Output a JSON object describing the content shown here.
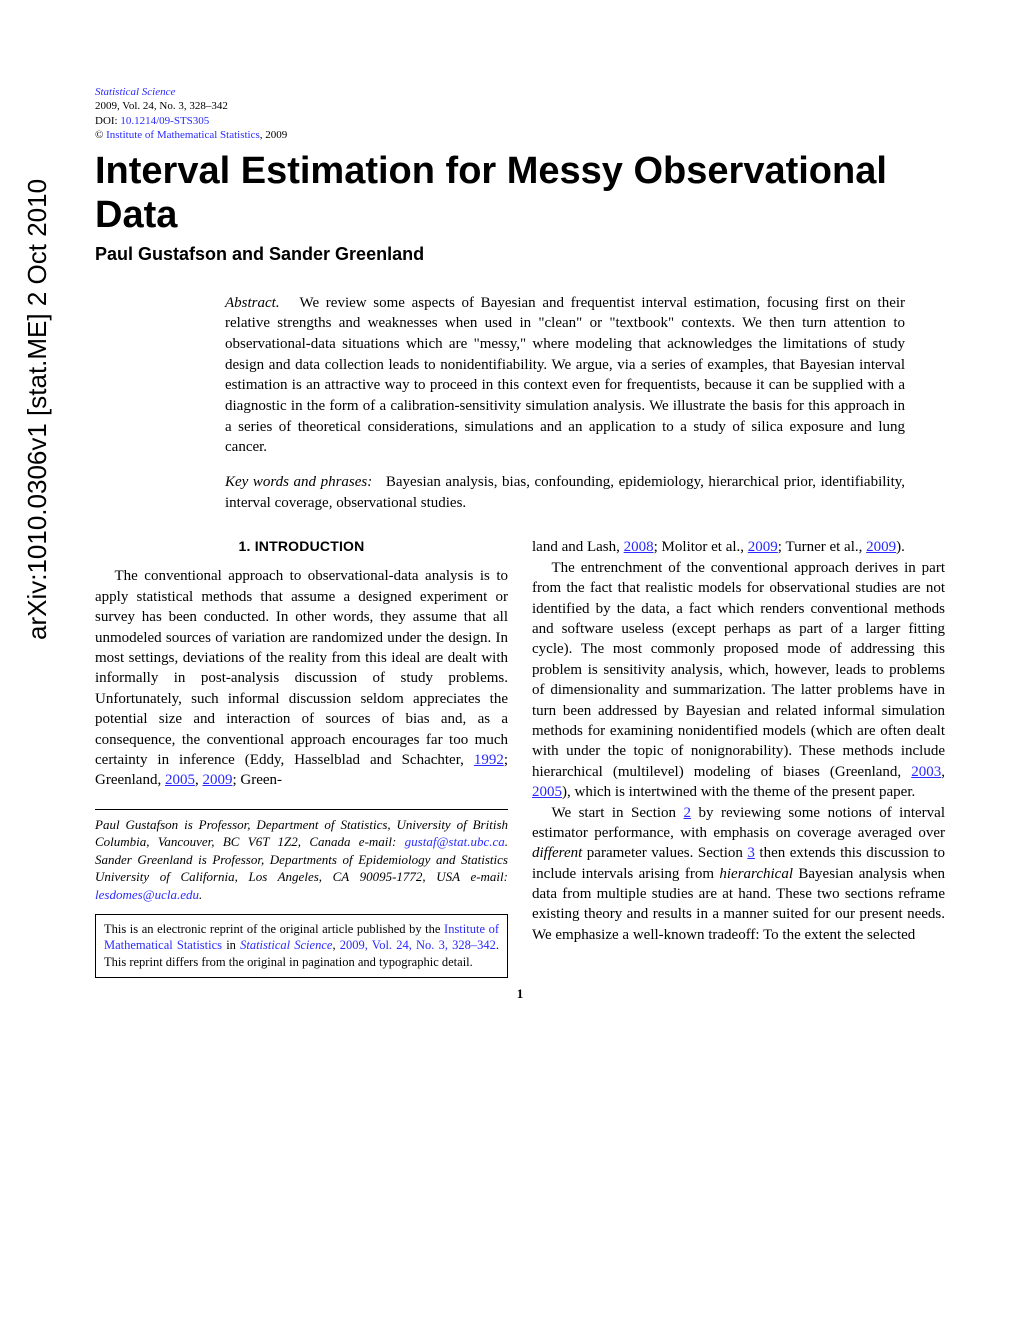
{
  "arxiv": {
    "id": "arXiv:1010.0306v1  [stat.ME]  2 Oct 2010"
  },
  "meta": {
    "journal": "Statistical Science",
    "citation": "2009, Vol. 24, No. 3, 328–342",
    "doi_label": "DOI: ",
    "doi": "10.1214/09-STS305",
    "copyright_prefix": "© ",
    "copyright_link": "Institute of Mathematical Statistics",
    "copyright_suffix": ", 2009"
  },
  "title": "Interval Estimation for Messy Observational Data",
  "authors": "Paul Gustafson and Sander Greenland",
  "abstract": {
    "label": "Abstract.",
    "text": "We review some aspects of Bayesian and frequentist interval estimation, focusing first on their relative strengths and weaknesses when used in \"clean\" or \"textbook\" contexts. We then turn attention to observational-data situations which are \"messy,\" where modeling that acknowledges the limitations of study design and data collection leads to nonidentifiability. We argue, via a series of examples, that Bayesian interval estimation is an attractive way to proceed in this context even for frequentists, because it can be supplied with a diagnostic in the form of a calibration-sensitivity simulation analysis. We illustrate the basis for this approach in a series of theoretical considerations, simulations and an application to a study of silica exposure and lung cancer."
  },
  "keywords": {
    "label": "Key words and phrases:",
    "text": "Bayesian analysis, bias, confounding, epidemiology, hierarchical prior, identifiability, interval coverage, observational studies."
  },
  "section1": {
    "heading": "1. INTRODUCTION"
  },
  "left": {
    "p1a": "The conventional approach to observational-data analysis is to apply statistical methods that assume a designed experiment or survey has been conducted. In other words, they assume that all unmodeled sources of variation are randomized under the design. In most settings, deviations of the reality from this ideal are dealt with informally in post-analysis discussion of study problems. Unfortunately, such informal discussion seldom appreciates the potential size and interaction of sources of bias and, as a consequence, the conventional approach encourages far too much certainty in inference (Eddy, Hasselblad and Schachter, ",
    "y1992": "1992",
    "p1b": "; Greenland, ",
    "y2005": "2005",
    "p1c": ", ",
    "y2009": "2009",
    "p1d": "; Green-"
  },
  "affil": {
    "text_a": "Paul Gustafson is Professor, Department of Statistics, University of British Columbia, Vancouver, BC V6T 1Z2, Canada e-mail: ",
    "email1": "gustaf@stat.ubc.ca",
    "text_b": ". Sander Greenland is Professor, Departments of Epidemiology and Statistics University of California, Los Angeles, CA 90095-1772, USA e-mail: ",
    "email2": "lesdomes@ucla.edu",
    "text_c": "."
  },
  "reprint": {
    "a": "This is an electronic reprint of the original article published by the ",
    "ims": "Institute of Mathematical Statistics",
    "b": " in ",
    "journal": "Statistical Science",
    "c": ", ",
    "cite": "2009, Vol. 24, No. 3, 328–342",
    "d": ". This reprint differs from the original in pagination and typographic detail."
  },
  "right": {
    "p0a": "land and Lash, ",
    "y2008": "2008",
    "p0b": "; Molitor et al., ",
    "y2009a": "2009",
    "p0c": "; Turner et al., ",
    "y2009b": "2009",
    "p0d": ").",
    "p1a": "The entrenchment of the conventional approach derives in part from the fact that realistic models for observational studies are not identified by the data, a fact which renders conventional methods and software useless (except perhaps as part of a larger fitting cycle). The most commonly proposed mode of addressing this problem is sensitivity analysis, which, however, leads to problems of dimensionality and summarization. The latter problems have in turn been addressed by Bayesian and related informal simulation methods for examining nonidentified models (which are often dealt with under the topic of nonignorability). These methods include hierarchical (multilevel) modeling of biases (Greenland, ",
    "y2003": "2003",
    "p1b": ", ",
    "y2005": "2005",
    "p1c": "), which is intertwined with the theme of the present paper.",
    "p2a": "We start in Section ",
    "sec2": "2",
    "p2b": " by reviewing some notions of interval estimator performance, with emphasis on coverage averaged over ",
    "different": "different",
    "p2c": " parameter values. Section ",
    "sec3": "3",
    "p2d": " then extends this discussion to include intervals arising from ",
    "hier": "hierarchical",
    "p2e": " Bayesian analysis when data from multiple studies are at hand. These two sections reframe existing theory and results in a manner suited for our present needs. We emphasize a well-known tradeoff: To the extent the selected"
  },
  "page_number": "1",
  "colors": {
    "link": "#2a2aff",
    "text": "#000000",
    "background": "#ffffff"
  },
  "typography": {
    "body_family": "Times New Roman",
    "sans_family": "Helvetica",
    "title_size_pt": 28,
    "author_size_pt": 13,
    "body_size_pt": 11,
    "meta_size_pt": 8,
    "arxiv_size_pt": 19
  }
}
